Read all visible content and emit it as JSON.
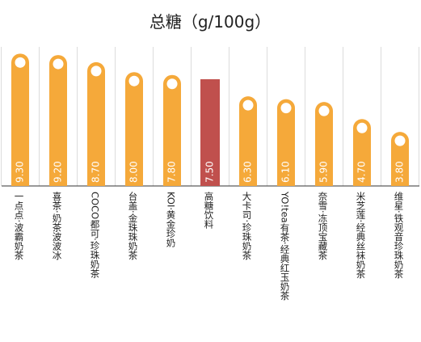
{
  "chart_data": {
    "type": "bar",
    "title": "总糖（g/100g）",
    "xlabel": "",
    "ylabel": "",
    "ylim": [
      0,
      10
    ],
    "grid": true,
    "categories": [
      "一点点·波霸奶茶",
      "喜茶·奶茶波波冰",
      "COCO都可·珍珠奶茶",
      "台盖·金珠珠奶茶",
      "KOI·黄金珍奶",
      "高糖饮料",
      "大卡司·珍珠奶茶",
      "YO!tea有茶·经典红玉奶茶",
      "奈雪·冻顶宝藏茶",
      "米芝莲·经典丝袜奶茶",
      "维星·铁观音珍珠奶茶"
    ],
    "values": [
      9.3,
      9.2,
      8.7,
      8.0,
      7.8,
      7.5,
      6.3,
      6.1,
      5.9,
      4.7,
      3.8
    ],
    "value_labels": [
      "9.30",
      "9.20",
      "8.70",
      "8.00",
      "7.80",
      "7.50",
      "6.30",
      "6.10",
      "5.90",
      "4.70",
      "3.80"
    ],
    "highlight_index": 5,
    "colors": {
      "bar": "#F5A93A",
      "highlight": "#C0504D",
      "marker": "#ffffff",
      "grid": "#dcdcdc"
    }
  }
}
